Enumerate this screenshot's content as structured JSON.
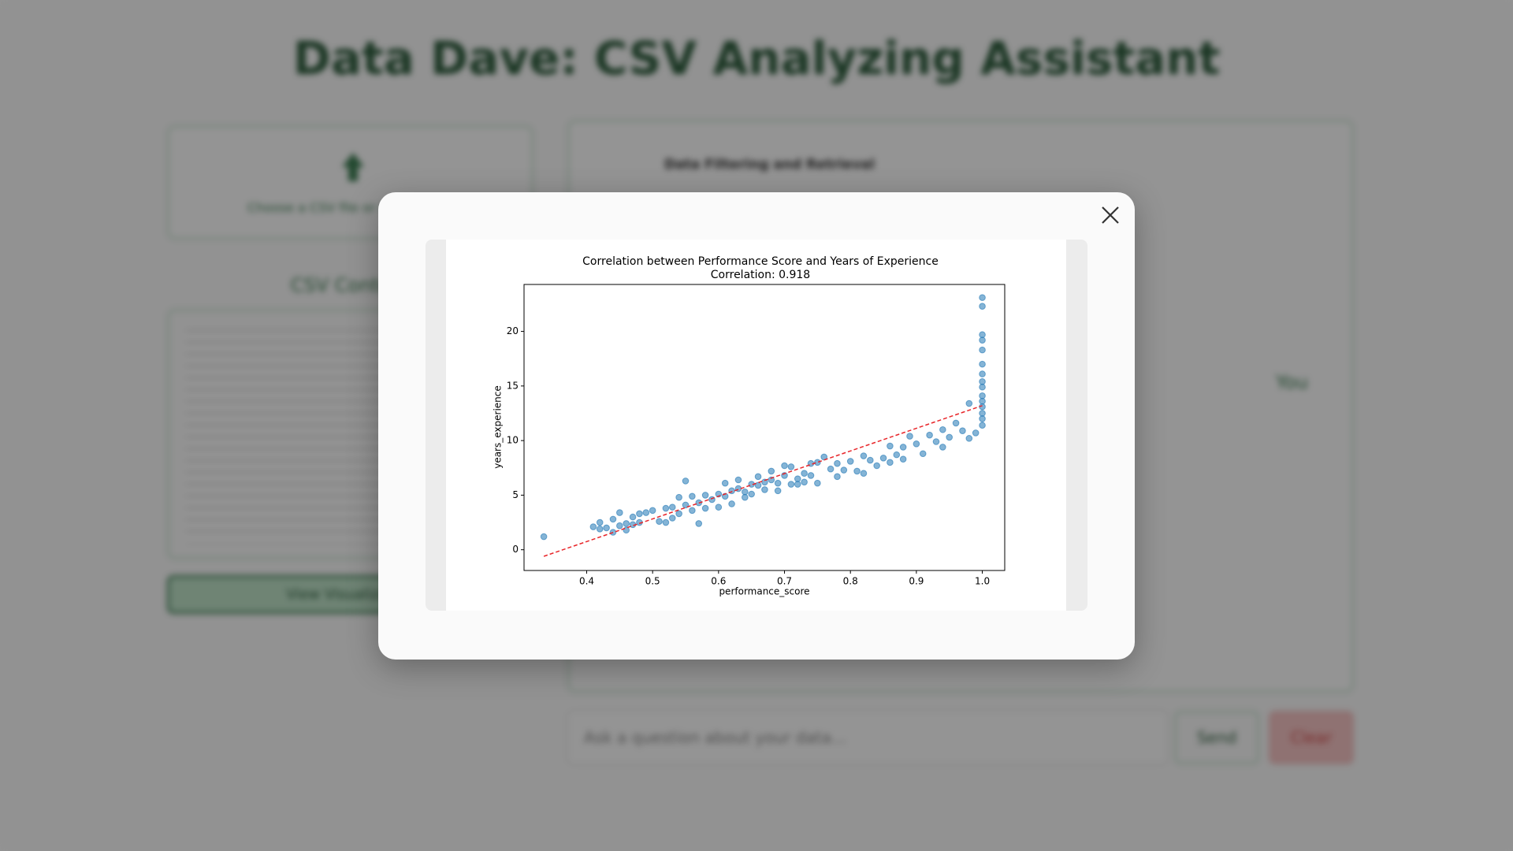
{
  "app": {
    "title": "Data Dave: CSV Analyzing Assistant",
    "upload_hint": "Choose a CSV file or drag it here",
    "csv_heading": "CSV Content",
    "view_button": "View Visualization",
    "topic": "Data Filtering and Retrieval",
    "user_label": "You",
    "input_placeholder": "Ask a question about your data...",
    "send_button": "Send",
    "clear_button": "Clear"
  },
  "chart_data": {
    "type": "scatter",
    "title": "Correlation between Performance Score and Years of Experience",
    "subtitle": "Correlation: 0.918",
    "x_label": "performance_score",
    "y_label": "years_experience",
    "color": "#1f77b4",
    "x": [
      0.335,
      0.41,
      0.42,
      0.42,
      0.43,
      0.44,
      0.44,
      0.45,
      0.45,
      0.46,
      0.46,
      0.47,
      0.47,
      0.48,
      0.48,
      0.49,
      0.5,
      0.51,
      0.52,
      0.52,
      0.53,
      0.53,
      0.54,
      0.54,
      0.55,
      0.55,
      0.56,
      0.56,
      0.57,
      0.57,
      0.58,
      0.58,
      0.59,
      0.6,
      0.6,
      0.61,
      0.61,
      0.62,
      0.62,
      0.63,
      0.63,
      0.64,
      0.64,
      0.65,
      0.65,
      0.66,
      0.66,
      0.67,
      0.67,
      0.68,
      0.68,
      0.69,
      0.69,
      0.7,
      0.7,
      0.71,
      0.71,
      0.72,
      0.72,
      0.73,
      0.73,
      0.74,
      0.74,
      0.75,
      0.75,
      0.76,
      0.77,
      0.78,
      0.78,
      0.79,
      0.8,
      0.81,
      0.82,
      0.82,
      0.83,
      0.84,
      0.85,
      0.86,
      0.86,
      0.87,
      0.88,
      0.88,
      0.89,
      0.9,
      0.91,
      0.92,
      0.93,
      0.94,
      0.94,
      0.95,
      0.96,
      0.97,
      0.98,
      0.98,
      0.99,
      1.0,
      1.0,
      1.0,
      1.0,
      1.0,
      1.0,
      1.0,
      1.0,
      1.0,
      1.0,
      1.0,
      1.0,
      1.0,
      1.0,
      1.0
    ],
    "values": [
      1.2,
      2.1,
      1.9,
      2.5,
      2.0,
      2.8,
      1.6,
      2.2,
      3.4,
      2.4,
      1.8,
      3.0,
      2.3,
      2.5,
      3.3,
      3.4,
      3.6,
      2.6,
      3.8,
      2.5,
      3.9,
      2.9,
      4.8,
      3.3,
      4.1,
      6.3,
      3.6,
      4.9,
      2.4,
      4.3,
      5.0,
      3.8,
      4.6,
      5.1,
      3.9,
      4.9,
      6.1,
      5.4,
      4.2,
      5.6,
      6.4,
      5.3,
      4.8,
      6.0,
      5.1,
      5.9,
      6.7,
      6.2,
      5.5,
      6.4,
      7.2,
      6.1,
      5.4,
      6.8,
      7.7,
      6.0,
      7.6,
      6.5,
      6.0,
      7.0,
      6.2,
      7.9,
      6.8,
      6.1,
      8.0,
      8.5,
      7.4,
      6.7,
      7.9,
      7.3,
      8.1,
      7.2,
      8.6,
      7.0,
      8.2,
      7.7,
      8.4,
      9.5,
      8.0,
      8.7,
      9.4,
      8.3,
      10.4,
      9.7,
      8.8,
      10.5,
      9.9,
      9.4,
      11.0,
      10.3,
      11.6,
      10.9,
      13.4,
      10.2,
      10.7,
      11.4,
      12.0,
      12.5,
      13.1,
      13.6,
      14.1,
      14.9,
      15.4,
      16.1,
      17.0,
      18.3,
      19.2,
      19.7,
      22.3,
      23.1
    ],
    "trend_line": {
      "x": [
        0.335,
        1.0
      ],
      "y": [
        -0.6,
        13.2
      ],
      "color": "#e8262a",
      "dashed": true
    },
    "xlim": [
      0.305,
      1.034
    ],
    "ylim": [
      -1.9,
      24.3
    ],
    "xticks": [
      0.4,
      0.5,
      0.6,
      0.7,
      0.8,
      0.9,
      {
        "value": 1,
        "label": "1.0"
      }
    ],
    "yticks": [
      0,
      5,
      10,
      15,
      20
    ]
  }
}
